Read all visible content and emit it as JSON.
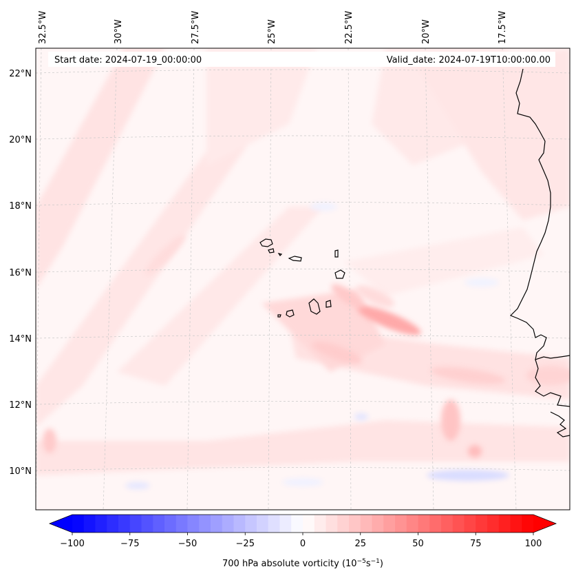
{
  "map": {
    "start_label": "Start date: 2024-07-19_00:00:00",
    "valid_label": "Valid_date: 2024-07-19T10:00:00.00",
    "lon_labels": [
      "32.5°W",
      "30°W",
      "27.5°W",
      "25°W",
      "22.5°W",
      "20°W",
      "17.5°W"
    ],
    "lat_labels": [
      "22°N",
      "20°N",
      "18°N",
      "16°N",
      "14°N",
      "12°N",
      "10°N"
    ]
  },
  "colorbar": {
    "label_text": "700 hPa absolute vorticity (10",
    "unit_exp_1": "−5",
    "unit_mid": "s",
    "unit_exp_2": "−1",
    "unit_close": ")",
    "min": -100,
    "max": 100,
    "ticks": [
      "−100",
      "−75",
      "−50",
      "−25",
      "0",
      "25",
      "50",
      "75",
      "100"
    ]
  },
  "colors": {
    "negative": "#0000ff",
    "neutral": "#ffffff",
    "positive": "#ff0000",
    "coast": "#000000",
    "grid": "#bbbbbb"
  }
}
